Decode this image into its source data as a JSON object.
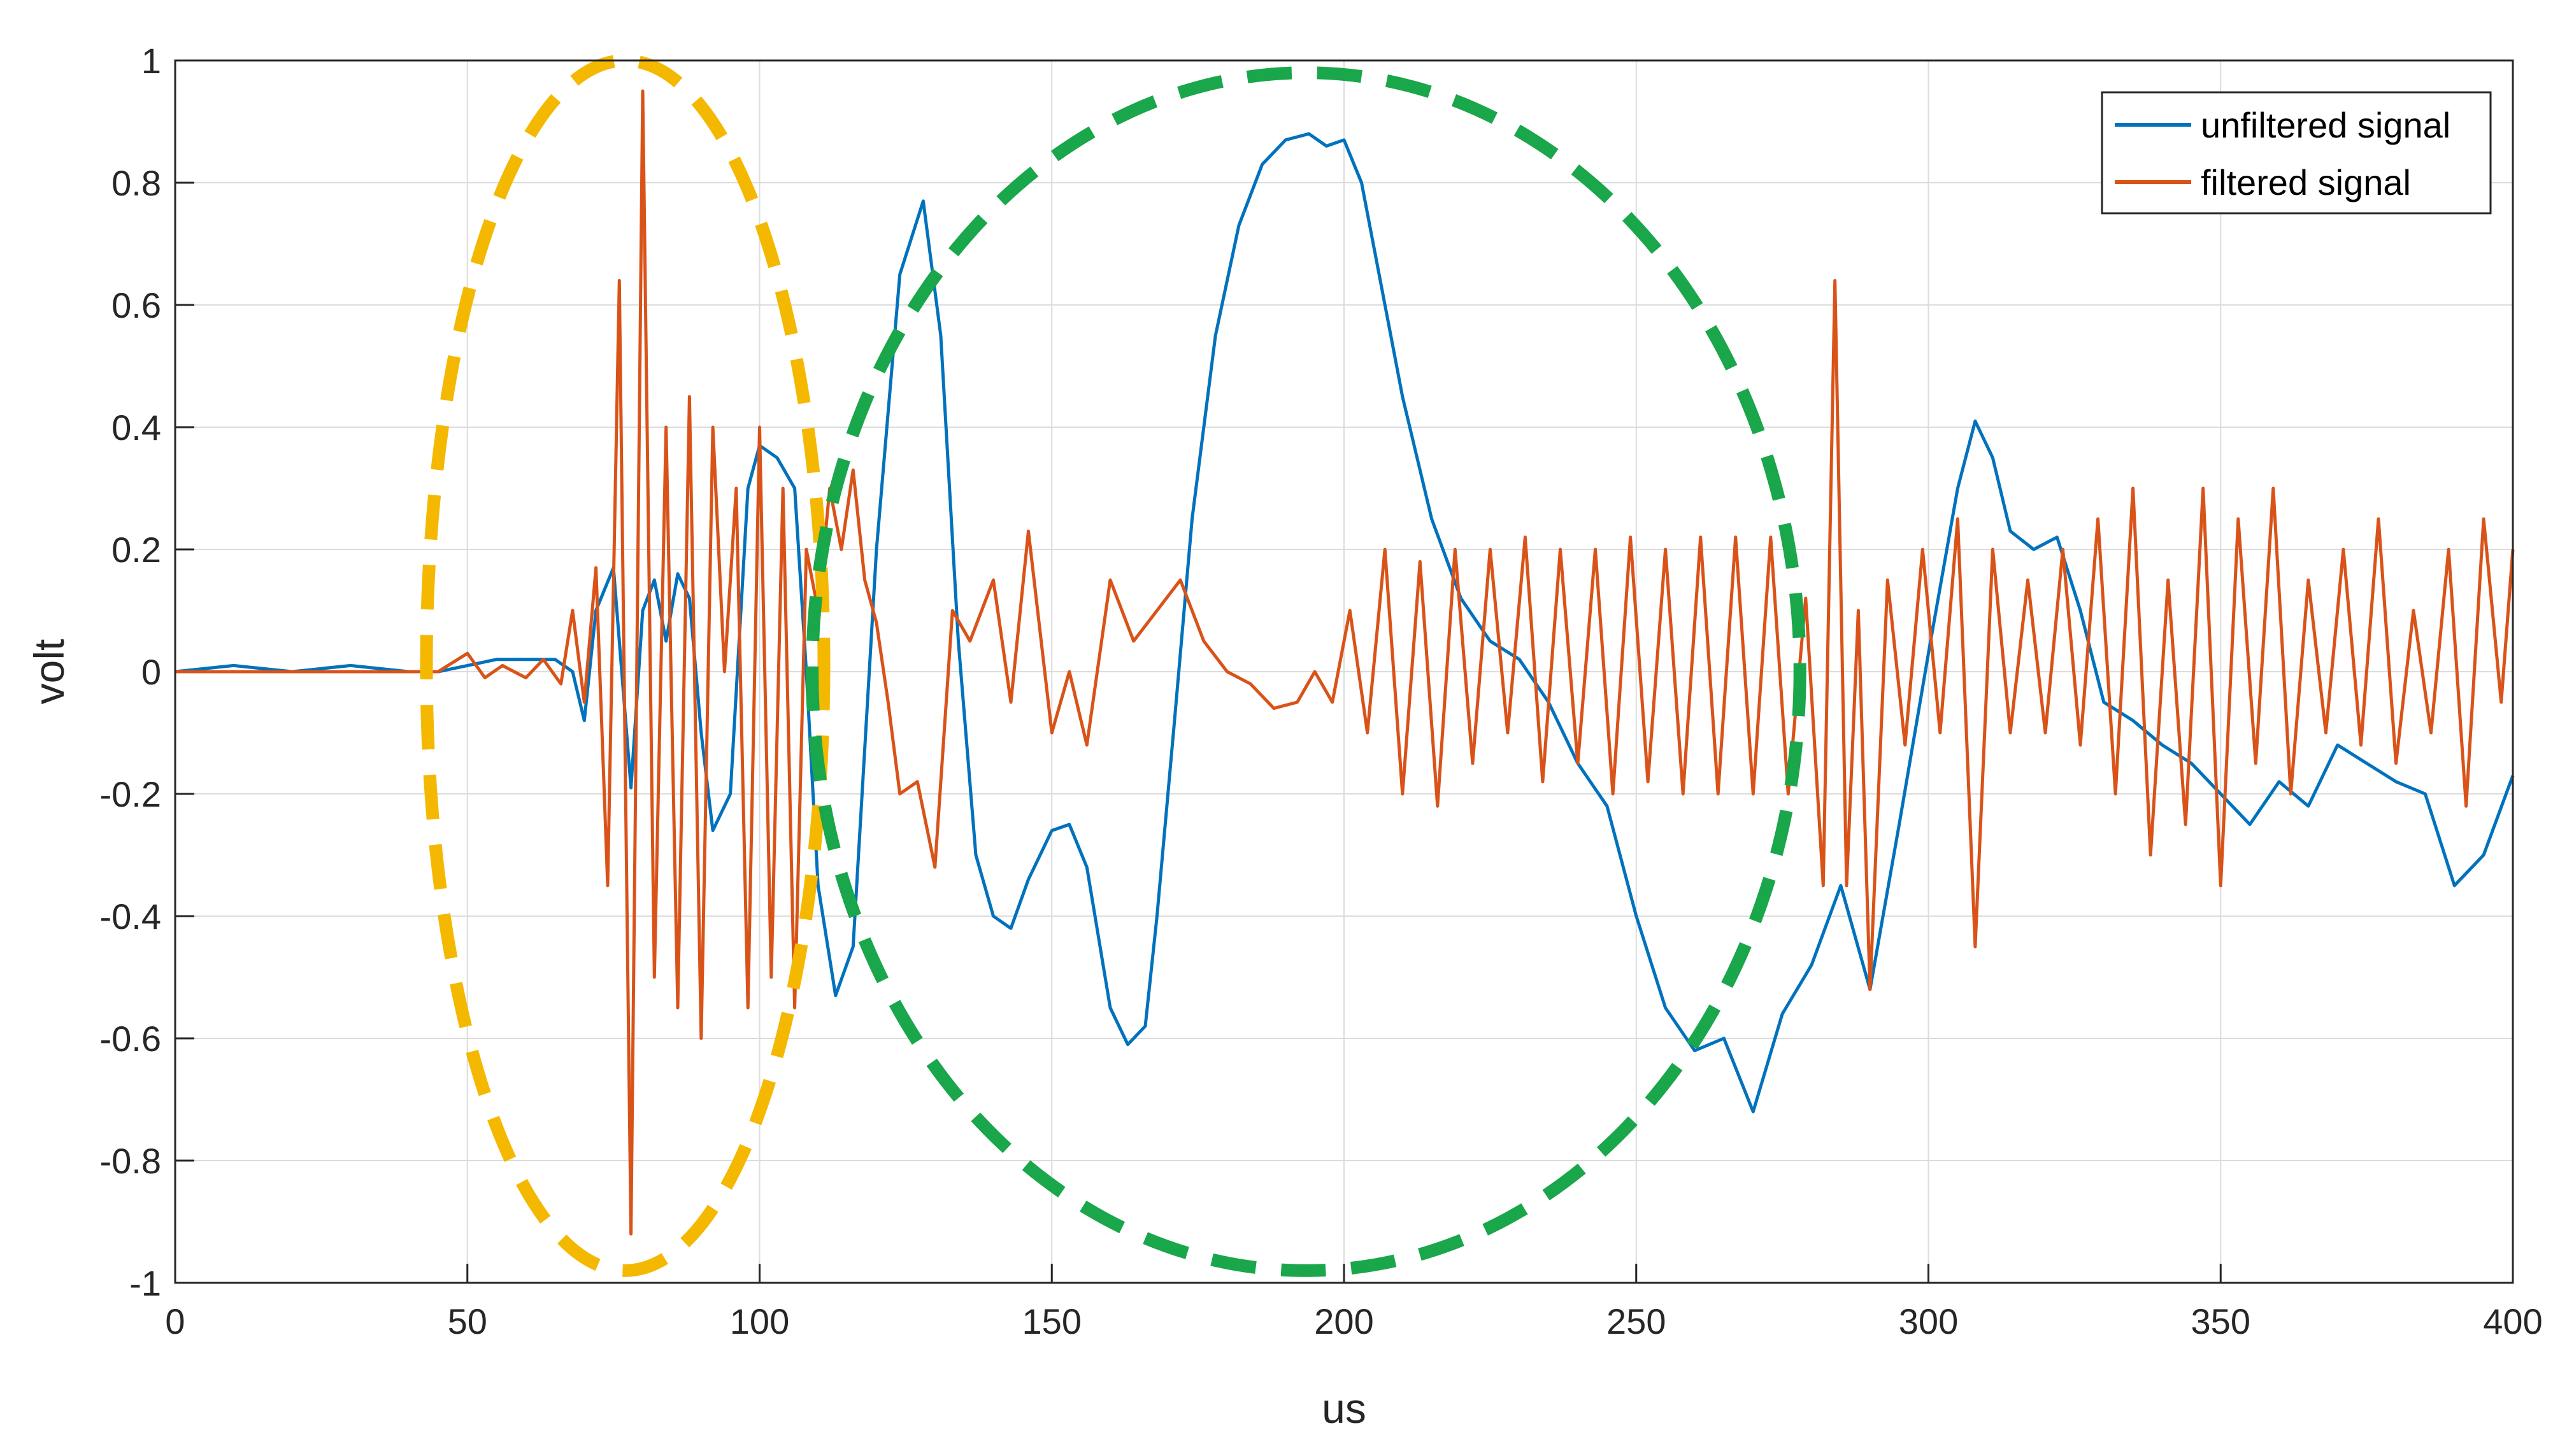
{
  "chart_data": {
    "type": "line",
    "title": "",
    "xlabel": "us",
    "ylabel": "volt",
    "xlim": [
      0,
      400
    ],
    "ylim": [
      -1,
      1
    ],
    "xticks": [
      0,
      50,
      100,
      150,
      200,
      250,
      300,
      350,
      400
    ],
    "yticks": [
      -1,
      -0.8,
      -0.6,
      -0.4,
      -0.2,
      0,
      0.2,
      0.4,
      0.6,
      0.8,
      1
    ],
    "xtick_labels": [
      "0",
      "50",
      "100",
      "150",
      "200",
      "250",
      "300",
      "350",
      "400"
    ],
    "ytick_labels": [
      "-1",
      "-0.8",
      "-0.6",
      "-0.4",
      "-0.2",
      "0",
      "0.2",
      "0.4",
      "0.6",
      "0.8",
      "1"
    ],
    "grid": true,
    "legend_position": "top-right",
    "series": [
      {
        "name": "unfiltered signal",
        "color": "#0072BD",
        "x": [
          0,
          10,
          20,
          30,
          40,
          45,
          50,
          55,
          60,
          65,
          68,
          70,
          72,
          75,
          78,
          80,
          82,
          84,
          86,
          88,
          90,
          92,
          95,
          98,
          100,
          103,
          106,
          108,
          110,
          113,
          116,
          120,
          124,
          128,
          131,
          134,
          137,
          140,
          143,
          146,
          150,
          153,
          156,
          160,
          163,
          166,
          168,
          171,
          174,
          178,
          182,
          186,
          190,
          194,
          197,
          200,
          203,
          206,
          210,
          215,
          220,
          225,
          230,
          235,
          240,
          245,
          250,
          255,
          260,
          265,
          270,
          275,
          280,
          285,
          290,
          295,
          300,
          305,
          308,
          311,
          314,
          318,
          322,
          326,
          330,
          335,
          340,
          345,
          350,
          355,
          360,
          365,
          370,
          375,
          380,
          385,
          390,
          395,
          400
        ],
        "y": [
          0,
          0.01,
          0,
          0.01,
          0,
          0,
          0.01,
          0.02,
          0.02,
          0.02,
          0,
          -0.08,
          0.1,
          0.17,
          -0.19,
          0.1,
          0.15,
          0.05,
          0.16,
          0.12,
          -0.1,
          -0.26,
          -0.2,
          0.3,
          0.37,
          0.35,
          0.3,
          0,
          -0.35,
          -0.53,
          -0.45,
          0.2,
          0.65,
          0.77,
          0.55,
          0.05,
          -0.3,
          -0.4,
          -0.42,
          -0.34,
          -0.26,
          -0.25,
          -0.32,
          -0.55,
          -0.61,
          -0.58,
          -0.4,
          -0.08,
          0.25,
          0.55,
          0.73,
          0.83,
          0.87,
          0.88,
          0.86,
          0.87,
          0.8,
          0.65,
          0.45,
          0.25,
          0.12,
          0.05,
          0.02,
          -0.05,
          -0.15,
          -0.22,
          -0.4,
          -0.55,
          -0.62,
          -0.6,
          -0.72,
          -0.56,
          -0.48,
          -0.35,
          -0.52,
          -0.25,
          0.03,
          0.3,
          0.41,
          0.35,
          0.23,
          0.2,
          0.22,
          0.1,
          -0.05,
          -0.08,
          -0.12,
          -0.15,
          -0.2,
          -0.25,
          -0.18,
          -0.22,
          -0.12,
          -0.15,
          -0.18,
          -0.2,
          -0.35,
          -0.3,
          -0.17
        ]
      },
      {
        "name": "filtered signal",
        "color": "#D95319",
        "x": [
          0,
          10,
          20,
          30,
          40,
          45,
          50,
          53,
          56,
          60,
          63,
          66,
          68,
          70,
          72,
          74,
          76,
          78,
          80,
          82,
          84,
          86,
          88,
          90,
          92,
          94,
          96,
          98,
          100,
          102,
          104,
          106,
          108,
          110,
          112,
          114,
          116,
          118,
          120,
          122,
          124,
          127,
          130,
          133,
          136,
          140,
          143,
          146,
          150,
          153,
          156,
          160,
          164,
          168,
          172,
          176,
          180,
          184,
          188,
          192,
          195,
          198,
          201,
          204,
          207,
          210,
          213,
          216,
          219,
          222,
          225,
          228,
          231,
          234,
          237,
          240,
          243,
          246,
          249,
          252,
          255,
          258,
          261,
          264,
          267,
          270,
          273,
          276,
          279,
          282,
          284,
          286,
          288,
          290,
          293,
          296,
          299,
          302,
          305,
          308,
          311,
          314,
          317,
          320,
          323,
          326,
          329,
          332,
          335,
          338,
          341,
          344,
          347,
          350,
          353,
          356,
          359,
          362,
          365,
          368,
          371,
          374,
          377,
          380,
          383,
          386,
          389,
          392,
          395,
          398,
          400
        ],
        "y": [
          0,
          0,
          0,
          0,
          0,
          0,
          0.03,
          -0.01,
          0.01,
          -0.01,
          0.02,
          -0.02,
          0.1,
          -0.05,
          0.17,
          -0.35,
          0.64,
          -0.92,
          0.95,
          -0.5,
          0.4,
          -0.55,
          0.45,
          -0.6,
          0.4,
          0.0,
          0.3,
          -0.55,
          0.4,
          -0.5,
          0.3,
          -0.55,
          0.2,
          0.1,
          0.3,
          0.2,
          0.33,
          0.15,
          0.08,
          -0.05,
          -0.2,
          -0.18,
          -0.32,
          0.1,
          0.05,
          0.15,
          -0.05,
          0.23,
          -0.1,
          0.0,
          -0.12,
          0.15,
          0.05,
          0.1,
          0.15,
          0.05,
          0.0,
          -0.02,
          -0.06,
          -0.05,
          0.0,
          -0.05,
          0.1,
          -0.1,
          0.2,
          -0.2,
          0.18,
          -0.22,
          0.2,
          -0.15,
          0.2,
          -0.1,
          0.22,
          -0.18,
          0.2,
          -0.15,
          0.2,
          -0.2,
          0.22,
          -0.18,
          0.2,
          -0.2,
          0.22,
          -0.2,
          0.22,
          -0.2,
          0.22,
          -0.2,
          0.12,
          -0.35,
          0.64,
          -0.35,
          0.1,
          -0.52,
          0.15,
          -0.12,
          0.2,
          -0.1,
          0.25,
          -0.45,
          0.2,
          -0.1,
          0.15,
          -0.1,
          0.2,
          -0.12,
          0.25,
          -0.2,
          0.3,
          -0.3,
          0.15,
          -0.25,
          0.3,
          -0.35,
          0.25,
          -0.15,
          0.3,
          -0.2,
          0.15,
          -0.1,
          0.2,
          -0.12,
          0.25,
          -0.15,
          0.1,
          -0.1,
          0.2,
          -0.22,
          0.25,
          -0.05,
          0.2
        ]
      }
    ],
    "annotations": [
      {
        "shape": "dashed-ellipse",
        "color": "#F5B800",
        "x_range": [
          43,
          111
        ],
        "y_range": [
          -0.98,
          1.0
        ]
      },
      {
        "shape": "dashed-ellipse",
        "color": "#1AA64A",
        "x_range": [
          109,
          278
        ],
        "y_range": [
          -0.98,
          0.98
        ]
      }
    ]
  }
}
